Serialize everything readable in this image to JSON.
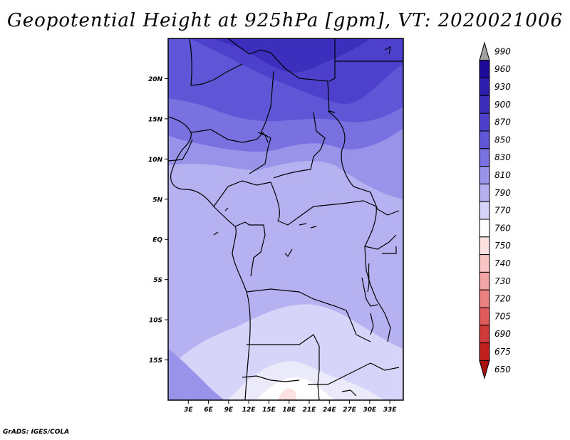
{
  "title": "Geopotential Height at 925hPa [gpm], VT: 2020021006",
  "footer": "GrADS: IGES/COLA",
  "map": {
    "lon_range": [
      0,
      35
    ],
    "lat_range": [
      -20,
      25
    ],
    "lon_ticks": [
      "3E",
      "6E",
      "9E",
      "12E",
      "15E",
      "18E",
      "21E",
      "24E",
      "27E",
      "30E",
      "33E"
    ],
    "lat_ticks": [
      "20N",
      "15N",
      "10N",
      "5N",
      "EQ",
      "5S",
      "10S",
      "15S"
    ]
  },
  "colorbar": {
    "levels": [
      "990",
      "960",
      "930",
      "900",
      "870",
      "850",
      "830",
      "810",
      "790",
      "770",
      "760",
      "750",
      "740",
      "730",
      "720",
      "705",
      "690",
      "675",
      "650"
    ],
    "colors": [
      "#a0a0a0",
      "#1e0a9a",
      "#2e1eae",
      "#3d2fbe",
      "#4d40cc",
      "#5e56d6",
      "#7a71e0",
      "#9a93ea",
      "#b6b2f2",
      "#d6d4f8",
      "#ffffff",
      "#fde0e0",
      "#f9c4c4",
      "#f3a4a4",
      "#ea8080",
      "#e05c5c",
      "#d03a3a",
      "#c02020",
      "#a81010"
    ]
  }
}
